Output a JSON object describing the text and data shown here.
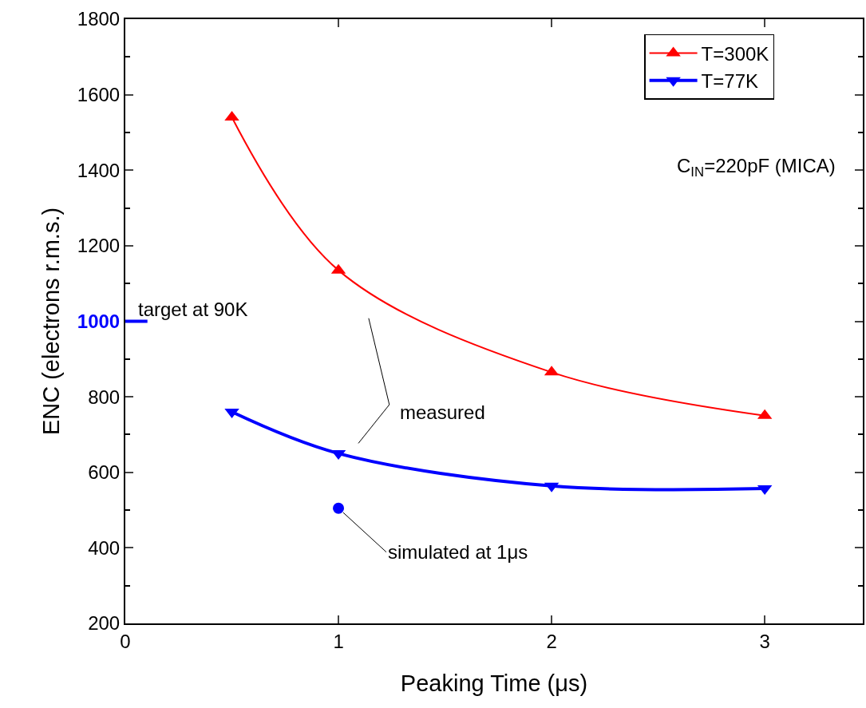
{
  "chart_data": {
    "type": "line",
    "xlabel": "Peaking Time (μs)",
    "ylabel": "ENC (electrons r.m.s.)",
    "xlim": [
      0,
      3.46
    ],
    "xticks": [
      0,
      1,
      2,
      3
    ],
    "ylim": [
      200,
      1800
    ],
    "yticks": [
      200,
      400,
      600,
      800,
      1000,
      1200,
      1400,
      1600,
      1800
    ],
    "series": [
      {
        "name": "T=300K",
        "color": "#ff0000",
        "x": [
          0.5,
          1,
          2,
          3
        ],
        "values": [
          1540,
          1135,
          865,
          750
        ],
        "marker": "triangle-up"
      },
      {
        "name": "T=77K",
        "color": "#0000ff",
        "x": [
          0.5,
          1,
          2,
          3
        ],
        "values": [
          760,
          650,
          564,
          557
        ],
        "marker": "triangle-down"
      },
      {
        "type": "scatter",
        "color": "#0000ff",
        "x": [
          1
        ],
        "values": [
          505
        ],
        "marker": "circle"
      }
    ],
    "ref_lines": [
      {
        "axis": "y",
        "value": 1000,
        "label": "target at 90K",
        "color": "#0000ff"
      }
    ],
    "annotations": [
      "C$_{IN}$=220pF (MICA)",
      "measured",
      {
        "text": "simulated at 1μs",
        "x": 1,
        "y": 505
      }
    ],
    "legend": "top right"
  }
}
